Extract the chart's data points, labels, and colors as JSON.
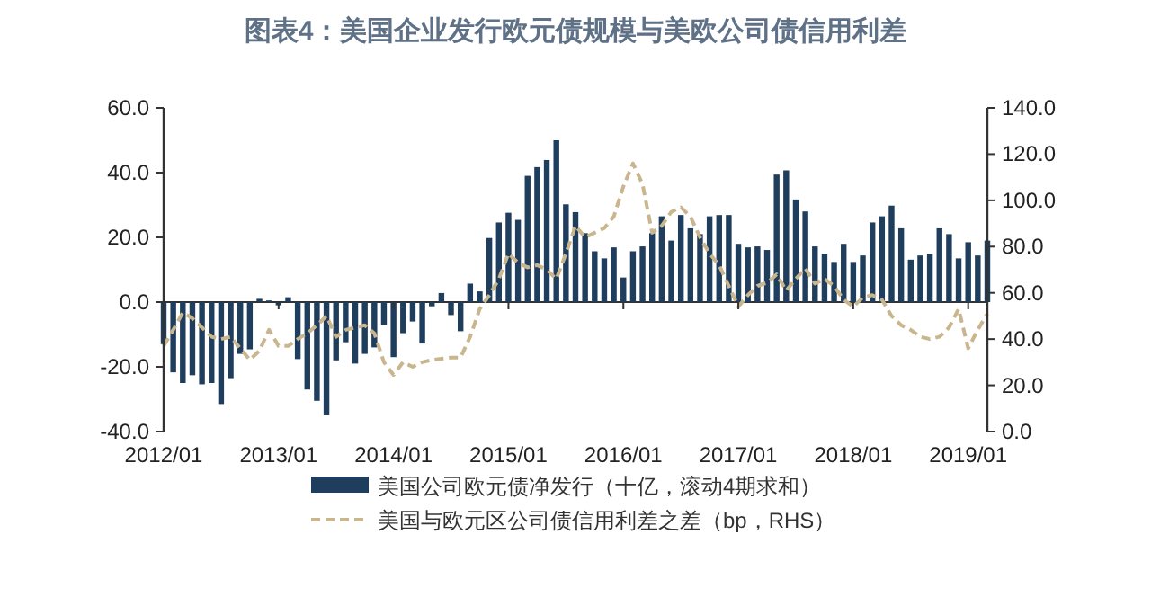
{
  "chart_data": {
    "type": "bar",
    "title": "图表4：美国企业发行欧元债规模与美欧公司债信用利差",
    "x": [
      "2012-01",
      "2012-02",
      "2012-03",
      "2012-04",
      "2012-05",
      "2012-06",
      "2012-07",
      "2012-08",
      "2012-09",
      "2012-10",
      "2012-11",
      "2012-12",
      "2013-01",
      "2013-02",
      "2013-03",
      "2013-04",
      "2013-05",
      "2013-06",
      "2013-07",
      "2013-08",
      "2013-09",
      "2013-10",
      "2013-11",
      "2013-12",
      "2014-01",
      "2014-02",
      "2014-03",
      "2014-04",
      "2014-05",
      "2014-06",
      "2014-07",
      "2014-08",
      "2014-09",
      "2014-10",
      "2014-11",
      "2014-12",
      "2015-01",
      "2015-02",
      "2015-03",
      "2015-04",
      "2015-05",
      "2015-06",
      "2015-07",
      "2015-08",
      "2015-09",
      "2015-10",
      "2015-11",
      "2015-12",
      "2016-01",
      "2016-02",
      "2016-03",
      "2016-04",
      "2016-05",
      "2016-06",
      "2016-07",
      "2016-08",
      "2016-09",
      "2016-10",
      "2016-11",
      "2016-12",
      "2017-01",
      "2017-02",
      "2017-03",
      "2017-04",
      "2017-05",
      "2017-06",
      "2017-07",
      "2017-08",
      "2017-09",
      "2017-10",
      "2017-11",
      "2017-12",
      "2018-01",
      "2018-02",
      "2018-03",
      "2018-04",
      "2018-05",
      "2018-06",
      "2018-07",
      "2018-08",
      "2018-09",
      "2018-10",
      "2018-11",
      "2018-12",
      "2019-01",
      "2019-02",
      "2019-03"
    ],
    "series": [
      {
        "name": "美国公司欧元债净发行（十亿，滚动4期求和）",
        "color": "#1f3d5c",
        "values": [
          -13,
          -21.7,
          -25,
          -22.6,
          -25.4,
          -25,
          -31.5,
          -23.5,
          -16,
          -14.6,
          1,
          0.5,
          -1,
          1.5,
          -17.6,
          -27,
          -30.5,
          -35,
          -18,
          -12.4,
          -19,
          -16,
          -14,
          -7,
          -17,
          -9.6,
          -6,
          -12.8,
          -1.3,
          2.8,
          -4,
          -9,
          5.7,
          3.3,
          19.8,
          24.6,
          27.6,
          25.4,
          39,
          41.7,
          43.9,
          50,
          30.2,
          27.8,
          21.3,
          15.7,
          13.5,
          16.9,
          7.6,
          15.7,
          17.2,
          21.3,
          26.5,
          19,
          26.9,
          22.8,
          21,
          26.5,
          26.9,
          26.9,
          18,
          16.9,
          17.2,
          16.1,
          39.4,
          40.7,
          31.7,
          28,
          17.2,
          15,
          12.4,
          18,
          12.4,
          14.4,
          24.6,
          26.5,
          29.8,
          22.8,
          13.1,
          14.4,
          15,
          22.8,
          21,
          13.5,
          18.5,
          14.4,
          19
        ]
      },
      {
        "name": "美国与欧元区公司债信用利差之差（bp，RHS）",
        "type": "line",
        "axis": "y2",
        "color": "#c9b68f",
        "line_style": "dashed",
        "values": [
          37,
          44,
          51.5,
          49,
          45,
          41,
          40,
          41,
          36,
          31,
          35,
          44,
          37,
          37,
          40,
          42.5,
          46,
          50,
          41,
          44,
          45,
          46,
          42.5,
          30,
          24.5,
          30,
          28,
          30,
          31,
          31.5,
          32,
          32,
          41,
          53,
          59,
          66,
          77,
          73,
          71,
          72,
          70,
          66,
          77,
          89,
          84,
          86,
          88,
          93,
          106,
          116,
          107,
          86,
          89,
          95,
          97,
          93,
          84,
          77,
          72,
          63,
          54,
          59,
          63,
          64.4,
          68,
          61,
          66,
          70.6,
          64,
          66,
          63,
          57,
          54,
          58,
          59,
          57,
          50,
          46,
          44,
          41,
          40,
          41,
          45,
          53,
          36,
          44,
          51
        ]
      }
    ],
    "xlim": [
      "2012-01",
      "2019-03"
    ],
    "xticks": [
      {
        "value": "2012-01",
        "label": "2012/01"
      },
      {
        "value": "2013-01",
        "label": "2013/01"
      },
      {
        "value": "2014-01",
        "label": "2014/01"
      },
      {
        "value": "2015-01",
        "label": "2015/01"
      },
      {
        "value": "2016-01",
        "label": "2016/01"
      },
      {
        "value": "2017-01",
        "label": "2017/01"
      },
      {
        "value": "2018-01",
        "label": "2018/01"
      },
      {
        "value": "2019-01",
        "label": "2019/01"
      }
    ],
    "ylim": [
      -40,
      60
    ],
    "yticks": [
      {
        "value": -40,
        "label": "-40.0"
      },
      {
        "value": -20,
        "label": "-20.0"
      },
      {
        "value": 0,
        "label": "0.0"
      },
      {
        "value": 20,
        "label": "20.0"
      },
      {
        "value": 40,
        "label": "40.0"
      },
      {
        "value": 60,
        "label": "60.0"
      }
    ],
    "y2lim": [
      0,
      140
    ],
    "y2ticks": [
      {
        "value": 0,
        "label": "0.0"
      },
      {
        "value": 20,
        "label": "20.0"
      },
      {
        "value": 40,
        "label": "40.0"
      },
      {
        "value": 60,
        "label": "60.0"
      },
      {
        "value": 80,
        "label": "80.0"
      },
      {
        "value": 100,
        "label": "100.0"
      },
      {
        "value": 120,
        "label": "120.0"
      },
      {
        "value": 140,
        "label": "140.0"
      }
    ],
    "legend": "bottom"
  }
}
